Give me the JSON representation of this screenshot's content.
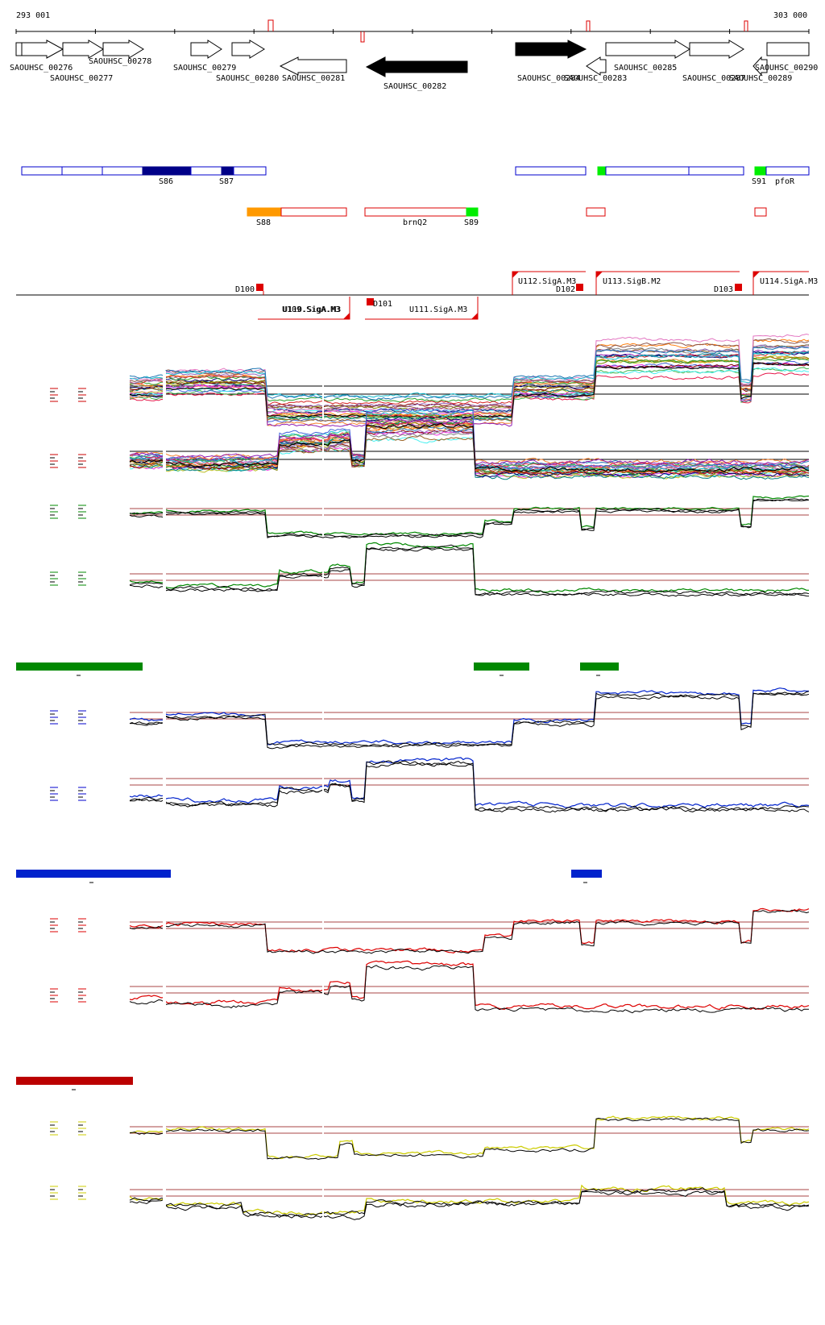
{
  "ruler": {
    "start_label": "293 001",
    "end_label": "303 000"
  },
  "genes": [
    {
      "label": "SAOUHSC_00276",
      "strand": "+",
      "fill": "white"
    },
    {
      "label": "SAOUHSC_00277",
      "strand": "+",
      "fill": "white"
    },
    {
      "label": "SAOUHSC_00278",
      "strand": "+",
      "fill": "white"
    },
    {
      "label": "SAOUHSC_00279",
      "strand": "+",
      "fill": "white"
    },
    {
      "label": "SAOUHSC_00280",
      "strand": "+",
      "fill": "white"
    },
    {
      "label": "SAOUHSC_00281",
      "strand": "-",
      "fill": "white"
    },
    {
      "label": "SAOUHSC_00282",
      "strand": "-",
      "fill": "black"
    },
    {
      "label": "SAOUHSC_00283",
      "strand": "-",
      "fill": "white"
    },
    {
      "label": "SAOUHSC_00284",
      "strand": "+",
      "fill": "black"
    },
    {
      "label": "SAOUHSC_00285",
      "strand": "+",
      "fill": "white"
    },
    {
      "label": "SAOUHSC_00287",
      "strand": "+",
      "fill": "white"
    },
    {
      "label": "SAOUHSC_00289",
      "strand": "+",
      "fill": "white"
    },
    {
      "label": "SAOUHSC_00290",
      "strand": "+",
      "fill": "white"
    }
  ],
  "segments_plus": [
    "S86",
    "S87",
    "S91",
    "pfoR"
  ],
  "segments_minus": [
    "S88",
    "brnQ2",
    "S89"
  ],
  "upshifts_plus": [
    "U112.SigA.M3",
    "U113.SigB.M2",
    "U114.SigA.M3"
  ],
  "upshifts_minus": [
    "U109.SigA.M3",
    "U110.SigA.M3",
    "U111.SigA.M3"
  ],
  "downshifts": [
    "D100",
    "D101",
    "D102",
    "D103"
  ],
  "colors": {
    "green": "#008800",
    "blue": "#0022cc",
    "red": "#dd0000",
    "darkred": "#bb0000",
    "yellow": "#cccc00",
    "orange": "#ff9900",
    "lime": "#00ee00",
    "navy": "#000088",
    "box_blue": "#0000cc",
    "box_red": "#dd0000",
    "ref_line": "#aa4444"
  },
  "icons": [
    "gene-arrow-icon",
    "upshift-flag-icon",
    "downshift-square-icon"
  ]
}
